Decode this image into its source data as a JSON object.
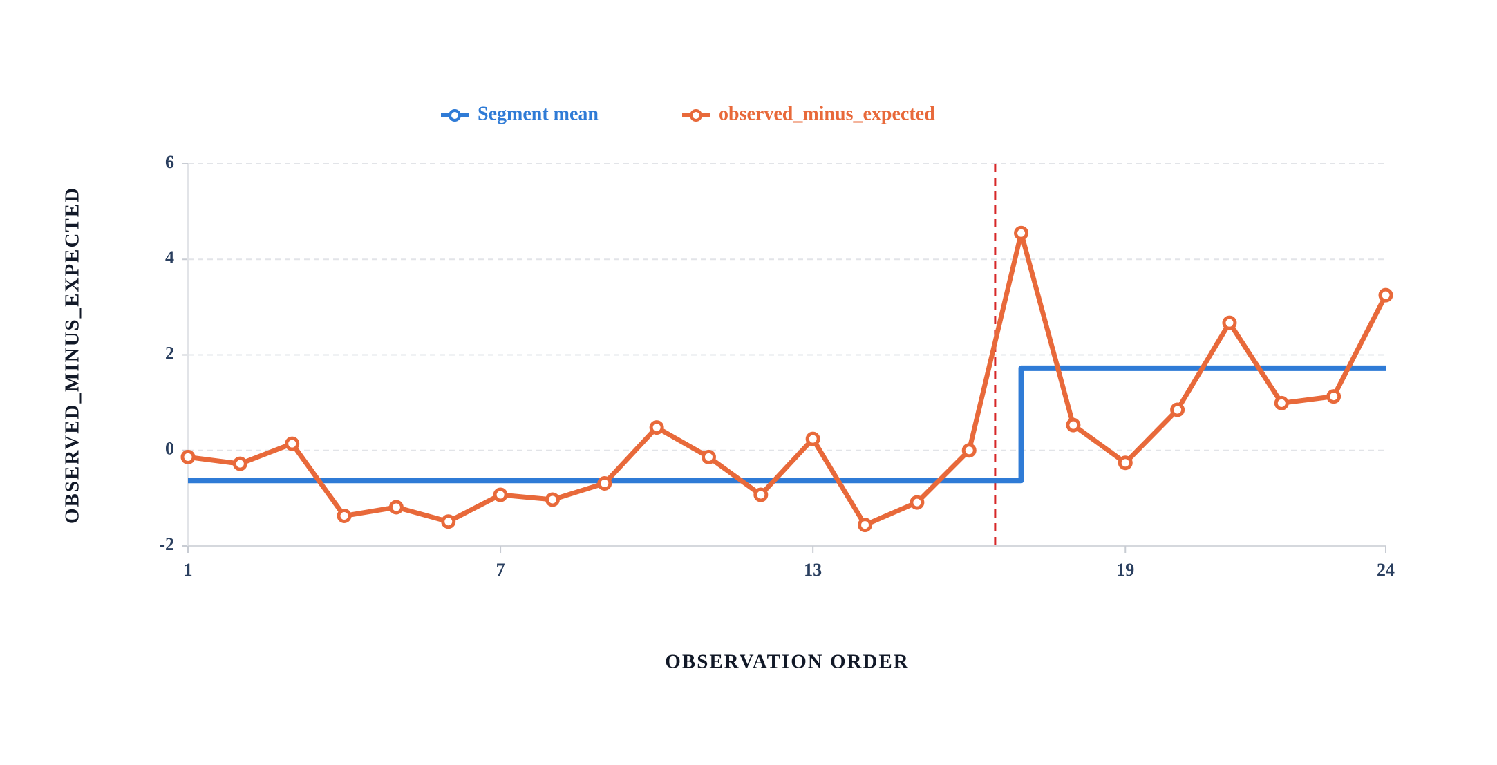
{
  "chart_data": {
    "type": "line",
    "x_label": "OBSERVATION ORDER",
    "y_label": "OBSERVED_MINUS_EXPECTED",
    "xlim": [
      1,
      24
    ],
    "xticks": [
      1,
      7,
      13,
      19,
      24
    ],
    "ylim": [
      -2,
      6
    ],
    "yticks": [
      -2,
      0,
      2,
      4,
      6
    ],
    "grid": true,
    "series": [
      {
        "name": "Segment mean",
        "color": "#2f7bd6",
        "x": [
          1,
          17,
          17,
          24
        ],
        "values": [
          -0.63,
          -0.63,
          1.72,
          1.72
        ],
        "markers": false
      },
      {
        "name": "observed_minus_expected",
        "color": "#e8693a",
        "x": [
          1,
          2,
          3,
          4,
          5,
          6,
          7,
          8,
          9,
          10,
          11,
          12,
          13,
          14,
          15,
          16,
          17,
          18,
          19,
          20,
          21,
          22,
          23,
          24
        ],
        "values": [
          -0.14,
          -0.28,
          0.14,
          -1.37,
          -1.19,
          -1.49,
          -0.93,
          -1.03,
          -0.69,
          0.48,
          -0.14,
          -0.93,
          0.24,
          -1.56,
          -1.09,
          0.0,
          4.55,
          0.53,
          -0.26,
          0.85,
          2.67,
          0.99,
          1.13,
          3.25
        ],
        "markers": true
      }
    ],
    "vline": {
      "x": 16.5,
      "color": "#d62728"
    }
  }
}
